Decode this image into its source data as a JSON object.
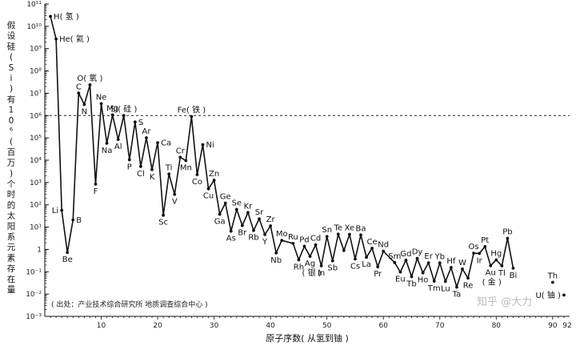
{
  "chart_data": {
    "type": "line",
    "title": "",
    "xlabel": "原子序数( 从氢到铀 )",
    "ylabel": "假设硅( Si )有10⁶( 百万 )个时的太阳系元素存在量",
    "yscale": "log",
    "ylim": [
      0.001,
      100000000000
    ],
    "xlim": [
      0,
      93
    ],
    "x_ticks": [
      "10",
      "20",
      "30",
      "40",
      "50",
      "60",
      "70",
      "80",
      "90",
      "92"
    ],
    "y_ticks": [
      "10⁻³",
      "10⁻²",
      "10⁻¹",
      "1",
      "10¹",
      "10²",
      "10³",
      "10⁴",
      "10⁵",
      "10⁶",
      "10⁷",
      "10⁸",
      "10⁹",
      "10¹⁰",
      "10¹¹"
    ],
    "reference_line": {
      "y": 1000000,
      "style": "dashed"
    },
    "source_note": "( 出处：产业技术综合研究所 地质调查综合中心 )",
    "watermark": "知乎 @大力",
    "points": [
      {
        "x": 1,
        "y": 27900000000
      },
      {
        "x": 2,
        "y": 2720000000
      },
      {
        "x": 3,
        "y": 57.1
      },
      {
        "x": 4,
        "y": 0.73
      },
      {
        "x": 5,
        "y": 21.2
      },
      {
        "x": 6,
        "y": 10100000
      },
      {
        "x": 7,
        "y": 3130000
      },
      {
        "x": 8,
        "y": 23800000
      },
      {
        "x": 9,
        "y": 843
      },
      {
        "x": 10,
        "y": 3440000
      },
      {
        "x": 11,
        "y": 57400
      },
      {
        "x": 12,
        "y": 1074000
      },
      {
        "x": 13,
        "y": 84900
      },
      {
        "x": 14,
        "y": 1000000
      },
      {
        "x": 15,
        "y": 10400
      },
      {
        "x": 16,
        "y": 515000
      },
      {
        "x": 17,
        "y": 5240
      },
      {
        "x": 18,
        "y": 101000
      },
      {
        "x": 19,
        "y": 3770
      },
      {
        "x": 20,
        "y": 61100
      },
      {
        "x": 21,
        "y": 34.2
      },
      {
        "x": 22,
        "y": 2400
      },
      {
        "x": 23,
        "y": 293
      },
      {
        "x": 24,
        "y": 13500
      },
      {
        "x": 25,
        "y": 9550
      },
      {
        "x": 26,
        "y": 900000
      },
      {
        "x": 27,
        "y": 2250
      },
      {
        "x": 28,
        "y": 49300
      },
      {
        "x": 29,
        "y": 522
      },
      {
        "x": 30,
        "y": 1260
      },
      {
        "x": 31,
        "y": 37.8
      },
      {
        "x": 32,
        "y": 119
      },
      {
        "x": 33,
        "y": 6.56
      },
      {
        "x": 34,
        "y": 62.1
      },
      {
        "x": 35,
        "y": 11.8
      },
      {
        "x": 36,
        "y": 45
      },
      {
        "x": 37,
        "y": 7.09
      },
      {
        "x": 38,
        "y": 23.5
      },
      {
        "x": 39,
        "y": 4.64
      },
      {
        "x": 40,
        "y": 11.4
      },
      {
        "x": 41,
        "y": 0.698
      },
      {
        "x": 42,
        "y": 2.55
      },
      {
        "x": 44,
        "y": 1.86
      },
      {
        "x": 45,
        "y": 0.344
      },
      {
        "x": 46,
        "y": 1.39
      },
      {
        "x": 47,
        "y": 0.486
      },
      {
        "x": 48,
        "y": 1.61
      },
      {
        "x": 49,
        "y": 0.184
      },
      {
        "x": 50,
        "y": 3.82
      },
      {
        "x": 51,
        "y": 0.309
      },
      {
        "x": 52,
        "y": 4.81
      },
      {
        "x": 53,
        "y": 0.9
      },
      {
        "x": 54,
        "y": 4.7
      },
      {
        "x": 55,
        "y": 0.372
      },
      {
        "x": 56,
        "y": 4.49
      },
      {
        "x": 57,
        "y": 0.446
      },
      {
        "x": 58,
        "y": 1.136
      },
      {
        "x": 59,
        "y": 0.167
      },
      {
        "x": 60,
        "y": 0.828
      },
      {
        "x": 62,
        "y": 0.258
      },
      {
        "x": 63,
        "y": 0.0973
      },
      {
        "x": 64,
        "y": 0.33
      },
      {
        "x": 65,
        "y": 0.0603
      },
      {
        "x": 66,
        "y": 0.394
      },
      {
        "x": 67,
        "y": 0.0889
      },
      {
        "x": 68,
        "y": 0.251
      },
      {
        "x": 69,
        "y": 0.0378
      },
      {
        "x": 70,
        "y": 0.248
      },
      {
        "x": 71,
        "y": 0.0367
      },
      {
        "x": 72,
        "y": 0.154
      },
      {
        "x": 73,
        "y": 0.0207
      },
      {
        "x": 74,
        "y": 0.133
      },
      {
        "x": 75,
        "y": 0.0517
      },
      {
        "x": 76,
        "y": 0.675
      },
      {
        "x": 77,
        "y": 0.661
      },
      {
        "x": 78,
        "y": 1.34
      },
      {
        "x": 79,
        "y": 0.187
      },
      {
        "x": 80,
        "y": 0.34
      },
      {
        "x": 81,
        "y": 0.184
      },
      {
        "x": 82,
        "y": 3.15
      },
      {
        "x": 83,
        "y": 0.144
      }
    ],
    "isolated_points": [
      {
        "x": 90,
        "y": 0.0335
      },
      {
        "x": 92,
        "y": 0.009
      }
    ],
    "labels": [
      {
        "x": 1,
        "y": 27900000000,
        "text": "H( 氢 )",
        "pos": "right"
      },
      {
        "x": 2,
        "y": 2720000000,
        "text": "He( 氦 )",
        "pos": "right"
      },
      {
        "x": 3,
        "y": 57.1,
        "text": "Li",
        "pos": "left"
      },
      {
        "x": 4,
        "y": 0.73,
        "text": "Be",
        "pos": "below"
      },
      {
        "x": 5,
        "y": 21.2,
        "text": "B",
        "pos": "right"
      },
      {
        "x": 6,
        "y": 10100000,
        "text": "C",
        "pos": "above"
      },
      {
        "x": 7,
        "y": 3130000,
        "text": "N",
        "pos": "below"
      },
      {
        "x": 8,
        "y": 23800000,
        "text": "O( 氧 )",
        "pos": "above"
      },
      {
        "x": 9,
        "y": 843,
        "text": "F",
        "pos": "below"
      },
      {
        "x": 10,
        "y": 3440000,
        "text": "Ne",
        "pos": "above"
      },
      {
        "x": 11,
        "y": 57400,
        "text": "Na",
        "pos": "below"
      },
      {
        "x": 12,
        "y": 1074000,
        "text": "Mg",
        "pos": "above"
      },
      {
        "x": 13,
        "y": 84900,
        "text": "Al",
        "pos": "below"
      },
      {
        "x": 14,
        "y": 1000000,
        "text": "Si( 硅 )",
        "pos": "above"
      },
      {
        "x": 15,
        "y": 10400,
        "text": "P",
        "pos": "below"
      },
      {
        "x": 16,
        "y": 515000,
        "text": "S",
        "pos": "right"
      },
      {
        "x": 17,
        "y": 5240,
        "text": "Cl",
        "pos": "below"
      },
      {
        "x": 18,
        "y": 101000,
        "text": "Ar",
        "pos": "above"
      },
      {
        "x": 19,
        "y": 3770,
        "text": "K",
        "pos": "below"
      },
      {
        "x": 20,
        "y": 61100,
        "text": "Ca",
        "pos": "right"
      },
      {
        "x": 21,
        "y": 34.2,
        "text": "Sc",
        "pos": "below"
      },
      {
        "x": 22,
        "y": 2400,
        "text": "Ti",
        "pos": "above"
      },
      {
        "x": 23,
        "y": 293,
        "text": "V",
        "pos": "below"
      },
      {
        "x": 24,
        "y": 13500,
        "text": "Cr",
        "pos": "above"
      },
      {
        "x": 25,
        "y": 9550,
        "text": "Mn",
        "pos": "below"
      },
      {
        "x": 26,
        "y": 900000,
        "text": "Fe( 铁 )",
        "pos": "above"
      },
      {
        "x": 27,
        "y": 2250,
        "text": "Co",
        "pos": "below"
      },
      {
        "x": 28,
        "y": 49300,
        "text": "Ni",
        "pos": "right"
      },
      {
        "x": 29,
        "y": 522,
        "text": "Cu",
        "pos": "below"
      },
      {
        "x": 30,
        "y": 1260,
        "text": "Zn",
        "pos": "above"
      },
      {
        "x": 31,
        "y": 37.8,
        "text": "Ga",
        "pos": "below"
      },
      {
        "x": 32,
        "y": 119,
        "text": "Ge",
        "pos": "above"
      },
      {
        "x": 33,
        "y": 6.56,
        "text": "As",
        "pos": "below"
      },
      {
        "x": 34,
        "y": 62.1,
        "text": "Se",
        "pos": "above"
      },
      {
        "x": 35,
        "y": 11.8,
        "text": "Br",
        "pos": "below"
      },
      {
        "x": 36,
        "y": 45,
        "text": "Kr",
        "pos": "above"
      },
      {
        "x": 37,
        "y": 7.09,
        "text": "Rb",
        "pos": "below"
      },
      {
        "x": 38,
        "y": 23.5,
        "text": "Sr",
        "pos": "above"
      },
      {
        "x": 39,
        "y": 4.64,
        "text": "Y",
        "pos": "below"
      },
      {
        "x": 40,
        "y": 11.4,
        "text": "Zr",
        "pos": "above"
      },
      {
        "x": 41,
        "y": 0.698,
        "text": "Nb",
        "pos": "below"
      },
      {
        "x": 42,
        "y": 2.55,
        "text": "Mo",
        "pos": "above"
      },
      {
        "x": 44,
        "y": 1.86,
        "text": "Ru",
        "pos": "above"
      },
      {
        "x": 45,
        "y": 0.344,
        "text": "Rh",
        "pos": "below"
      },
      {
        "x": 46,
        "y": 1.39,
        "text": "Pd",
        "pos": "above"
      },
      {
        "x": 47,
        "y": 0.486,
        "text": "Ag",
        "pos": "below"
      },
      {
        "x": 47.3,
        "y": 0.486,
        "text": "( 银 )",
        "pos": "below2"
      },
      {
        "x": 48,
        "y": 1.61,
        "text": "Cd",
        "pos": "above"
      },
      {
        "x": 49,
        "y": 0.184,
        "text": "In",
        "pos": "below"
      },
      {
        "x": 50,
        "y": 3.82,
        "text": "Sn",
        "pos": "above"
      },
      {
        "x": 51,
        "y": 0.309,
        "text": "Sb",
        "pos": "below"
      },
      {
        "x": 52,
        "y": 4.81,
        "text": "Te",
        "pos": "above"
      },
      {
        "x": 54,
        "y": 4.7,
        "text": "Xe",
        "pos": "above"
      },
      {
        "x": 55,
        "y": 0.372,
        "text": "Cs",
        "pos": "below"
      },
      {
        "x": 56,
        "y": 4.49,
        "text": "Ba",
        "pos": "above"
      },
      {
        "x": 57,
        "y": 0.446,
        "text": "La",
        "pos": "below"
      },
      {
        "x": 58,
        "y": 1.136,
        "text": "Ce",
        "pos": "above"
      },
      {
        "x": 59,
        "y": 0.167,
        "text": "Pr",
        "pos": "below"
      },
      {
        "x": 60,
        "y": 0.828,
        "text": "Nd",
        "pos": "above"
      },
      {
        "x": 62,
        "y": 0.258,
        "text": "Sm",
        "pos": "above"
      },
      {
        "x": 63,
        "y": 0.0973,
        "text": "Eu",
        "pos": "below"
      },
      {
        "x": 64,
        "y": 0.33,
        "text": "Gd",
        "pos": "above"
      },
      {
        "x": 65,
        "y": 0.0603,
        "text": "Tb",
        "pos": "below"
      },
      {
        "x": 66,
        "y": 0.394,
        "text": "Dy",
        "pos": "above"
      },
      {
        "x": 67,
        "y": 0.0889,
        "text": "Ho",
        "pos": "below"
      },
      {
        "x": 68,
        "y": 0.251,
        "text": "Er",
        "pos": "above"
      },
      {
        "x": 69,
        "y": 0.0378,
        "text": "Tm",
        "pos": "below"
      },
      {
        "x": 70,
        "y": 0.248,
        "text": "Yb",
        "pos": "above"
      },
      {
        "x": 71,
        "y": 0.0367,
        "text": "Lu",
        "pos": "below"
      },
      {
        "x": 72,
        "y": 0.154,
        "text": "Hf",
        "pos": "above"
      },
      {
        "x": 73,
        "y": 0.0207,
        "text": "Ta",
        "pos": "below"
      },
      {
        "x": 74,
        "y": 0.133,
        "text": "W",
        "pos": "above"
      },
      {
        "x": 75,
        "y": 0.0517,
        "text": "Re",
        "pos": "below"
      },
      {
        "x": 76,
        "y": 0.675,
        "text": "Os",
        "pos": "above"
      },
      {
        "x": 77,
        "y": 0.661,
        "text": "Ir",
        "pos": "below"
      },
      {
        "x": 78,
        "y": 1.34,
        "text": "Pt",
        "pos": "above"
      },
      {
        "x": 79,
        "y": 0.187,
        "text": "Au",
        "pos": "below"
      },
      {
        "x": 79.2,
        "y": 0.187,
        "text": "( 金 )",
        "pos": "below2"
      },
      {
        "x": 80,
        "y": 0.34,
        "text": "Hg",
        "pos": "above"
      },
      {
        "x": 81,
        "y": 0.184,
        "text": "Tl",
        "pos": "below"
      },
      {
        "x": 82,
        "y": 3.15,
        "text": "Pb",
        "pos": "above"
      },
      {
        "x": 83,
        "y": 0.144,
        "text": "Bi",
        "pos": "below"
      },
      {
        "x": 90,
        "y": 0.0335,
        "text": "Th",
        "pos": "above"
      },
      {
        "x": 92,
        "y": 0.009,
        "text": "U( 铀 )",
        "pos": "left"
      }
    ]
  }
}
